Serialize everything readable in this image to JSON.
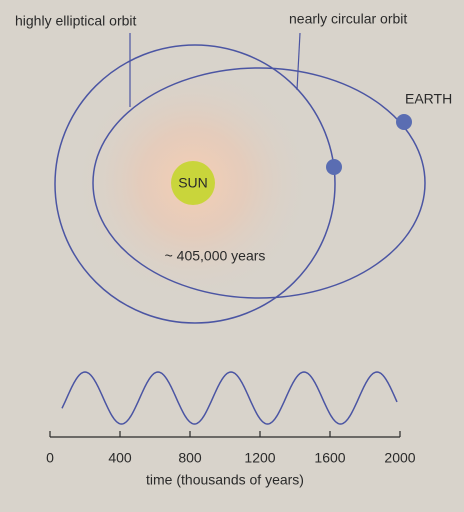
{
  "labels": {
    "highly_elliptical": "highly elliptical orbit",
    "nearly_circular": "nearly circular orbit",
    "earth": "EARTH",
    "sun": "SUN",
    "period": "~ 405,000 years"
  },
  "timeline": {
    "ticks": [
      "0",
      "400",
      "800",
      "1200",
      "1600",
      "2000"
    ],
    "axis_title": "time (thousands of years)"
  }
}
